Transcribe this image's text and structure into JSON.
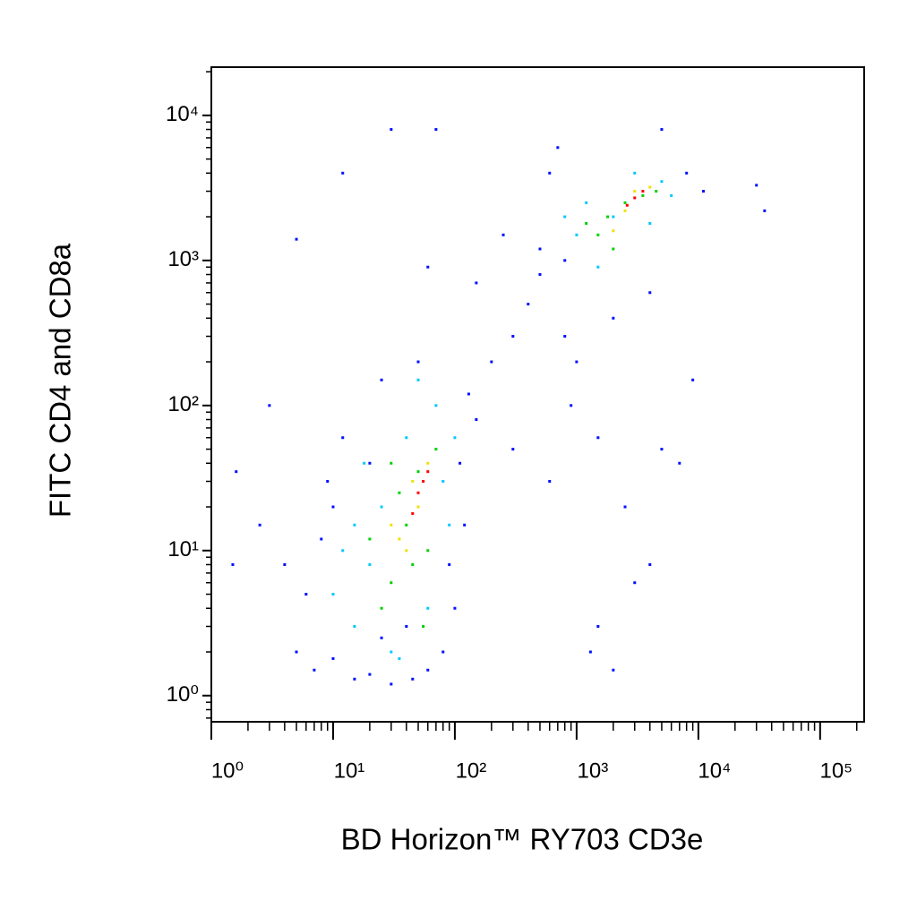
{
  "chart_data": {
    "type": "scatter",
    "x_label": "BD Horizon™ RY703 CD3e",
    "y_label": "FITC CD4 and CD8a",
    "xscale": "log",
    "yscale": "log",
    "minor_ticks": true,
    "xlim": [
      1,
      230000
    ],
    "ylim": [
      0.66,
      21500
    ],
    "xticks": [
      {
        "value": 1,
        "label": "10⁰"
      },
      {
        "value": 10,
        "label": "10¹"
      },
      {
        "value": 100,
        "label": "10²"
      },
      {
        "value": 1000,
        "label": "10³"
      },
      {
        "value": 10000,
        "label": "10⁴"
      },
      {
        "value": 100000,
        "label": "10⁵"
      }
    ],
    "yticks": [
      {
        "value": 1,
        "label": "10⁰"
      },
      {
        "value": 10,
        "label": "10¹"
      },
      {
        "value": 100,
        "label": "10²"
      },
      {
        "value": 1000,
        "label": "10³"
      },
      {
        "value": 10000,
        "label": "10⁴"
      }
    ],
    "series": [
      {
        "color": "#0010ff",
        "x": [
          5,
          7,
          6,
          8,
          9,
          12,
          15,
          20,
          25,
          30,
          45,
          60,
          80,
          100,
          110,
          130,
          150,
          200,
          300,
          400,
          500,
          250,
          150,
          60,
          30,
          70,
          12,
          5,
          3,
          1.6,
          1.5,
          2.5,
          300,
          600,
          900,
          1500,
          2500,
          4000,
          5000,
          7000,
          9000,
          3000,
          1500,
          1300,
          2000,
          800,
          1000,
          2000,
          600,
          700,
          5000,
          8000,
          11000,
          30000,
          35000,
          500,
          4000,
          800,
          10,
          4,
          50,
          20,
          10,
          90,
          120,
          40,
          25
        ],
        "values": [
          2,
          1.5,
          5,
          12,
          30,
          60,
          1.3,
          1.4,
          150,
          1.2,
          1.3,
          1.5,
          2,
          4,
          40,
          120,
          80,
          200,
          300,
          500,
          800,
          1500,
          700,
          900,
          8000,
          8000,
          4000,
          1400,
          100,
          35,
          8,
          15,
          50,
          30,
          100,
          60,
          20,
          8,
          50,
          40,
          150,
          6,
          3,
          2,
          1.5,
          300,
          200,
          400,
          4000,
          6000,
          8000,
          4000,
          3000,
          3300,
          2200,
          1200,
          600,
          1000,
          1.8,
          8,
          200,
          40,
          20,
          8,
          15,
          3,
          2.5
        ]
      },
      {
        "color": "#00c8ff",
        "x": [
          10,
          15,
          20,
          30,
          25,
          40,
          60,
          80,
          15,
          35,
          70,
          12,
          100,
          1000,
          1500,
          2000,
          3000,
          5000,
          1200,
          4000,
          800,
          6000,
          50,
          18,
          90
        ],
        "values": [
          5,
          3,
          8,
          2,
          20,
          60,
          4,
          30,
          15,
          1.8,
          100,
          10,
          60,
          1500,
          900,
          2000,
          4000,
          3500,
          2500,
          1800,
          2000,
          2800,
          150,
          40,
          15
        ]
      },
      {
        "color": "#00d000",
        "x": [
          20,
          30,
          40,
          50,
          35,
          60,
          25,
          45,
          70,
          30,
          55,
          1500,
          2000,
          2500,
          3500,
          1800,
          4500,
          1200
        ],
        "values": [
          12,
          6,
          15,
          35,
          25,
          10,
          4,
          8,
          50,
          40,
          3,
          1500,
          1200,
          2500,
          2800,
          2000,
          3000,
          1800
        ]
      },
      {
        "color": "#f0e000",
        "x": [
          40,
          50,
          35,
          60,
          45,
          30,
          2500,
          3000,
          2000,
          4000
        ],
        "values": [
          10,
          20,
          12,
          40,
          30,
          15,
          2200,
          3000,
          1600,
          3200
        ]
      },
      {
        "color": "#ff0000",
        "x": [
          50,
          55,
          45,
          60,
          3000,
          2600,
          3500
        ],
        "values": [
          25,
          30,
          18,
          35,
          2700,
          2400,
          3000
        ]
      }
    ]
  }
}
